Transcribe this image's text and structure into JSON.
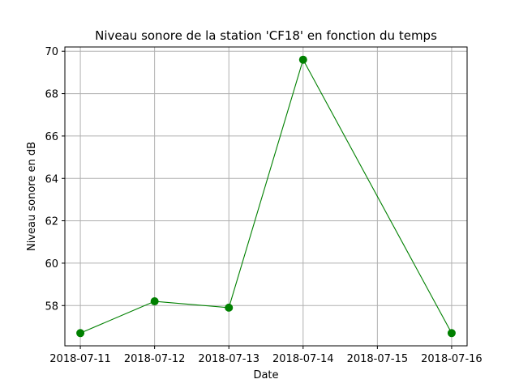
{
  "chart_data": {
    "type": "line",
    "title": "Niveau sonore de la station 'CF18' en fonction du temps",
    "xlabel": "Date",
    "ylabel": "Niveau sonore en dB",
    "x_ticks": [
      "2018-07-11",
      "2018-07-12",
      "2018-07-13",
      "2018-07-14",
      "2018-07-15",
      "2018-07-16"
    ],
    "y_ticks": [
      58,
      60,
      62,
      64,
      66,
      68,
      70
    ],
    "xlim": [
      "2018-07-10T19:00",
      "2018-07-16T05:00"
    ],
    "ylim": [
      56.1,
      70.2
    ],
    "grid": true,
    "series": [
      {
        "color": "#008000",
        "marker": "circle",
        "points": [
          {
            "x": "2018-07-11",
            "y": 56.7
          },
          {
            "x": "2018-07-12",
            "y": 58.2
          },
          {
            "x": "2018-07-13",
            "y": 57.9
          },
          {
            "x": "2018-07-14",
            "y": 69.6
          },
          {
            "x": "2018-07-16",
            "y": 56.7
          }
        ]
      }
    ]
  }
}
